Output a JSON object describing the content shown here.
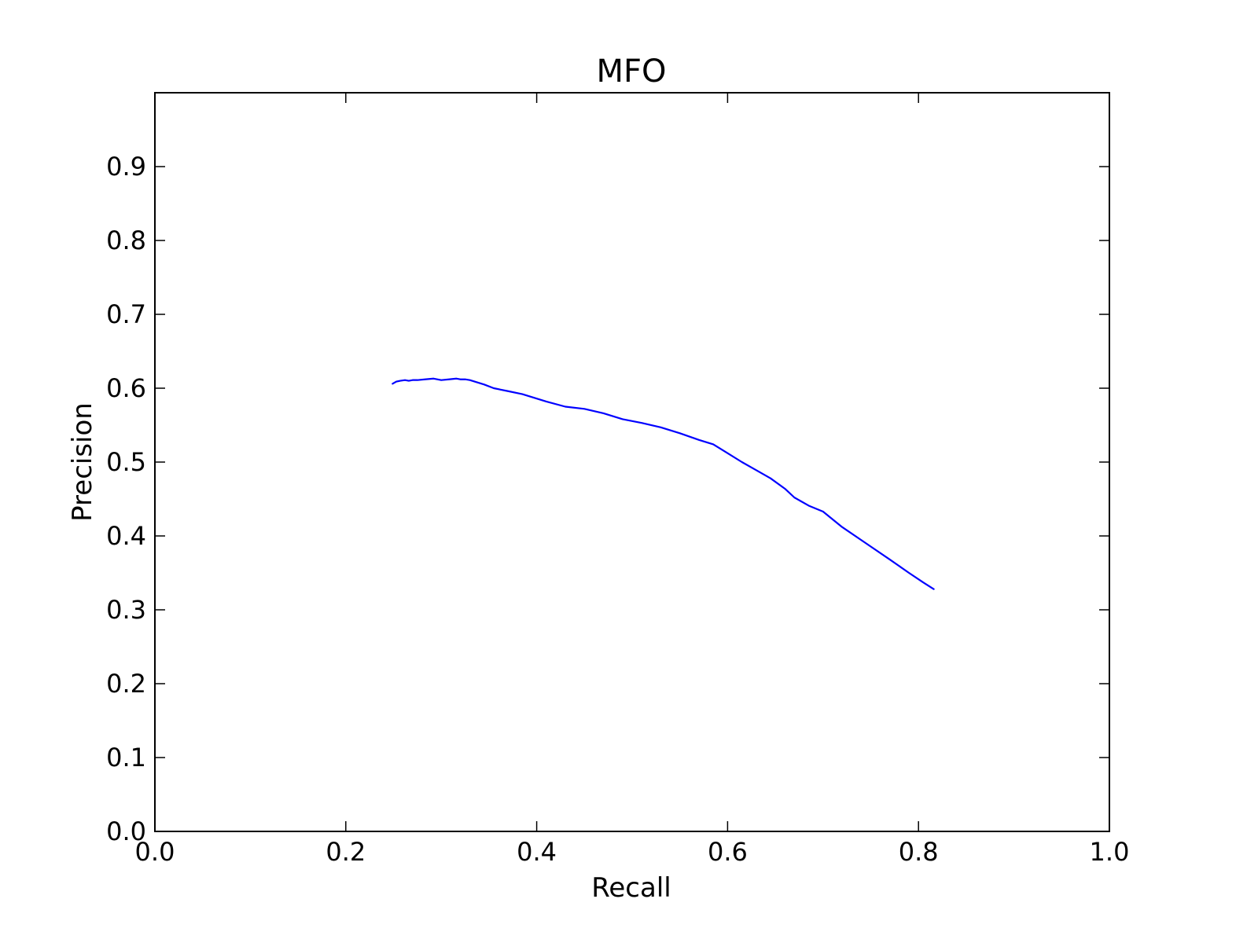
{
  "chart_data": {
    "type": "line",
    "title": "MFO",
    "xlabel": "Recall",
    "ylabel": "Precision",
    "xlim": [
      0.0,
      1.0
    ],
    "ylim": [
      0.0,
      1.0
    ],
    "xticks": [
      "0.0",
      "0.2",
      "0.4",
      "0.6",
      "0.8",
      "1.0"
    ],
    "yticks": [
      "0.0",
      "0.1",
      "0.2",
      "0.3",
      "0.4",
      "0.5",
      "0.6",
      "0.7",
      "0.8",
      "0.9"
    ],
    "grid": false,
    "series": [
      {
        "color": "#0000ff",
        "x": [
          0.249,
          0.253,
          0.257,
          0.262,
          0.266,
          0.27,
          0.275,
          0.283,
          0.292,
          0.3,
          0.308,
          0.316,
          0.32,
          0.325,
          0.33,
          0.345,
          0.355,
          0.37,
          0.385,
          0.4,
          0.41,
          0.43,
          0.45,
          0.47,
          0.49,
          0.51,
          0.53,
          0.55,
          0.57,
          0.585,
          0.6,
          0.615,
          0.63,
          0.645,
          0.66,
          0.67,
          0.685,
          0.7,
          0.72,
          0.745,
          0.77,
          0.79,
          0.805,
          0.816
        ],
        "y": [
          0.606,
          0.609,
          0.61,
          0.611,
          0.61,
          0.611,
          0.611,
          0.612,
          0.613,
          0.611,
          0.612,
          0.613,
          0.612,
          0.612,
          0.611,
          0.605,
          0.6,
          0.596,
          0.592,
          0.586,
          0.582,
          0.575,
          0.572,
          0.566,
          0.558,
          0.553,
          0.547,
          0.539,
          0.53,
          0.524,
          0.512,
          0.5,
          0.489,
          0.478,
          0.464,
          0.452,
          0.441,
          0.433,
          0.412,
          0.39,
          0.368,
          0.35,
          0.337,
          0.328
        ]
      }
    ]
  }
}
